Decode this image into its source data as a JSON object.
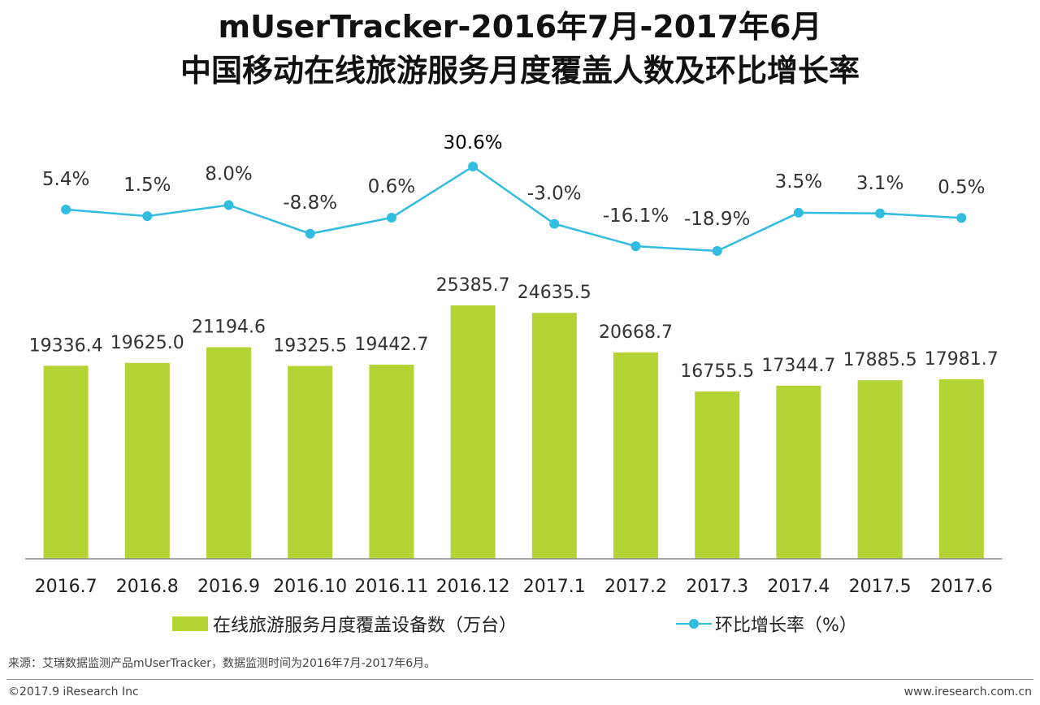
{
  "title_line1": "mUserTracker-2016年7月-2017年6月",
  "title_line2": "中国移动在线旅游服务月度覆盖人数及环比增长率",
  "chart_data": {
    "type": "bar+line",
    "categories": [
      "2016.7",
      "2016.8",
      "2016.9",
      "2016.10",
      "2016.11",
      "2016.12",
      "2017.1",
      "2017.2",
      "2017.3",
      "2017.4",
      "2017.5",
      "2017.6"
    ],
    "series": [
      {
        "name": "在线旅游服务月度覆盖设备数（万台）",
        "type": "bar",
        "color": "#b4d335",
        "values": [
          19336.4,
          19625.0,
          21194.6,
          19325.5,
          19442.7,
          25385.7,
          24635.5,
          20668.7,
          16755.5,
          17344.7,
          17885.5,
          17981.7
        ],
        "labels": [
          "19336.4",
          "19625.0",
          "21194.6",
          "19325.5",
          "19442.7",
          "25385.7",
          "24635.5",
          "20668.7",
          "16755.5",
          "17344.7",
          "17885.5",
          "17981.7"
        ],
        "ylim": [
          0,
          25385.7
        ]
      },
      {
        "name": "环比增长率（%）",
        "type": "line",
        "color": "#32bde0",
        "values": [
          5.4,
          1.5,
          8.0,
          -8.8,
          0.6,
          30.6,
          -3.0,
          -16.1,
          -18.9,
          3.5,
          3.1,
          0.5
        ],
        "labels": [
          "5.4%",
          "1.5%",
          "8.0%",
          "-8.8%",
          "0.6%",
          "30.6%",
          "-3.0%",
          "-16.1%",
          "-18.9%",
          "3.5%",
          "3.1%",
          "0.5%"
        ],
        "ylim": [
          -18.9,
          30.6
        ]
      }
    ]
  },
  "legend": {
    "bar_label": "在线旅游服务月度覆盖设备数（万台）",
    "line_label": "环比增长率（%）"
  },
  "source": "来源：艾瑞数据监测产品mUserTracker，数据监测时间为2016年7月-2017年6月。",
  "copyright": "©2017.9 iResearch Inc",
  "website": "www.iresearch.com.cn"
}
